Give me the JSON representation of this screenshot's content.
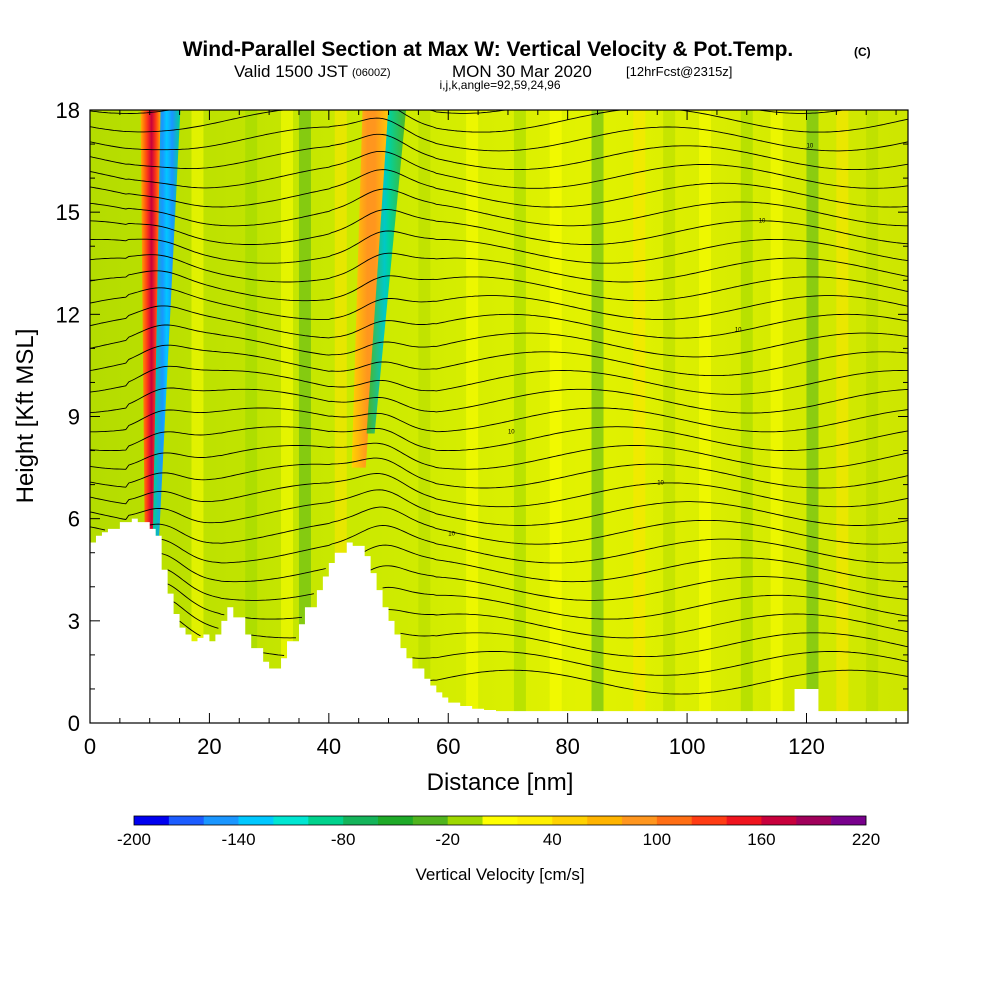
{
  "header": {
    "title": "Wind-Parallel Section at Max W: Vertical Velocity & Pot.Temp.",
    "title_mark": "(C)",
    "valid_prefix": "Valid 1500 JST",
    "valid_utc": "(0600Z)",
    "valid_date": "MON 30 Mar 2020",
    "forecast": "[12hrFcst@2315z]",
    "indices": "i,j,k,angle=92,59,24,96"
  },
  "chart_data": {
    "type": "heatmap",
    "xlabel": "Distance [nm]",
    "ylabel": "Height [Kft MSL]",
    "xlim": [
      0,
      137
    ],
    "ylim": [
      0,
      18
    ],
    "xticks": [
      0,
      20,
      40,
      60,
      80,
      100,
      120
    ],
    "yticks": [
      0,
      3,
      6,
      9,
      12,
      15,
      18
    ],
    "colorbar": {
      "label": "Vertical Velocity [cm/s]",
      "tick_labels": [
        -200,
        -140,
        -80,
        -20,
        40,
        100,
        160,
        220
      ],
      "levels": [
        -200,
        -180,
        -160,
        -140,
        -120,
        -100,
        -80,
        -60,
        -40,
        -20,
        0,
        20,
        40,
        60,
        80,
        100,
        120,
        140,
        160,
        180,
        200,
        220
      ],
      "colors": [
        "#0000f0",
        "#1c5cff",
        "#1a96ff",
        "#00c8ff",
        "#00e6d2",
        "#00d28c",
        "#14b45a",
        "#1eaa28",
        "#50b41e",
        "#9ed800",
        "#ffff00",
        "#fff000",
        "#ffd200",
        "#ffb400",
        "#ff961e",
        "#ff6e14",
        "#ff3c14",
        "#f0141e",
        "#c8003c",
        "#a0005a",
        "#78008c"
      ]
    },
    "updraft_bands_nm": [
      10,
      49
    ],
    "downdraft_bands_nm": [
      13,
      51
    ],
    "terrain": {
      "x_nm": [
        0,
        1,
        1,
        2,
        2,
        3,
        3,
        5,
        5,
        7,
        7,
        8,
        8,
        10,
        10,
        11,
        11,
        12,
        12,
        13,
        13,
        14,
        14,
        15,
        15,
        16,
        16,
        17,
        17,
        18,
        18,
        19,
        19,
        20,
        20,
        21,
        21,
        22,
        22,
        23,
        23,
        24,
        24,
        26,
        26,
        27,
        27,
        29,
        29,
        30,
        30,
        32,
        32,
        33,
        33,
        35,
        35,
        36,
        36,
        38,
        38,
        39,
        39,
        40,
        40,
        41,
        41,
        43,
        43,
        44,
        44,
        46,
        46,
        47,
        47,
        48,
        48,
        49,
        49,
        50,
        50,
        51,
        51,
        52,
        52,
        53,
        53,
        54,
        54,
        56,
        56,
        57,
        57,
        58,
        58,
        59,
        59,
        60,
        60,
        62,
        62,
        64,
        64,
        66,
        66,
        68,
        68,
        70,
        70,
        118,
        118,
        120,
        120,
        122,
        122,
        124,
        124,
        126,
        126,
        137
      ],
      "height_kft": [
        5.3,
        5.3,
        5.5,
        5.5,
        5.6,
        5.6,
        5.7,
        5.7,
        5.9,
        5.9,
        6.0,
        6.0,
        5.9,
        5.9,
        5.7,
        5.7,
        5.5,
        5.5,
        4.5,
        4.5,
        3.8,
        3.8,
        3.2,
        3.2,
        2.8,
        2.8,
        2.6,
        2.6,
        2.4,
        2.4,
        2.5,
        2.5,
        2.6,
        2.6,
        2.4,
        2.4,
        2.6,
        2.6,
        3.0,
        3.0,
        3.4,
        3.4,
        3.1,
        3.1,
        2.6,
        2.6,
        2.2,
        2.2,
        1.8,
        1.8,
        1.6,
        1.6,
        1.9,
        1.9,
        2.4,
        2.4,
        2.9,
        2.9,
        3.4,
        3.4,
        3.9,
        3.9,
        4.3,
        4.3,
        4.7,
        4.7,
        5.0,
        5.0,
        5.3,
        5.3,
        5.2,
        5.2,
        4.9,
        4.9,
        4.4,
        4.4,
        3.9,
        3.9,
        3.4,
        3.4,
        3.0,
        3.0,
        2.6,
        2.6,
        2.2,
        2.2,
        1.9,
        1.9,
        1.6,
        1.6,
        1.3,
        1.3,
        1.1,
        1.1,
        0.9,
        0.9,
        0.75,
        0.75,
        0.6,
        0.6,
        0.5,
        0.5,
        0.42,
        0.42,
        0.38,
        0.38,
        0.35,
        0.35,
        0.35,
        0.35,
        1.0,
        1.0,
        1.0,
        1.0,
        0.35,
        0.35,
        0.35,
        0.35,
        0.35,
        0.35
      ]
    },
    "grid": false,
    "legend": "bottom colorbar"
  }
}
